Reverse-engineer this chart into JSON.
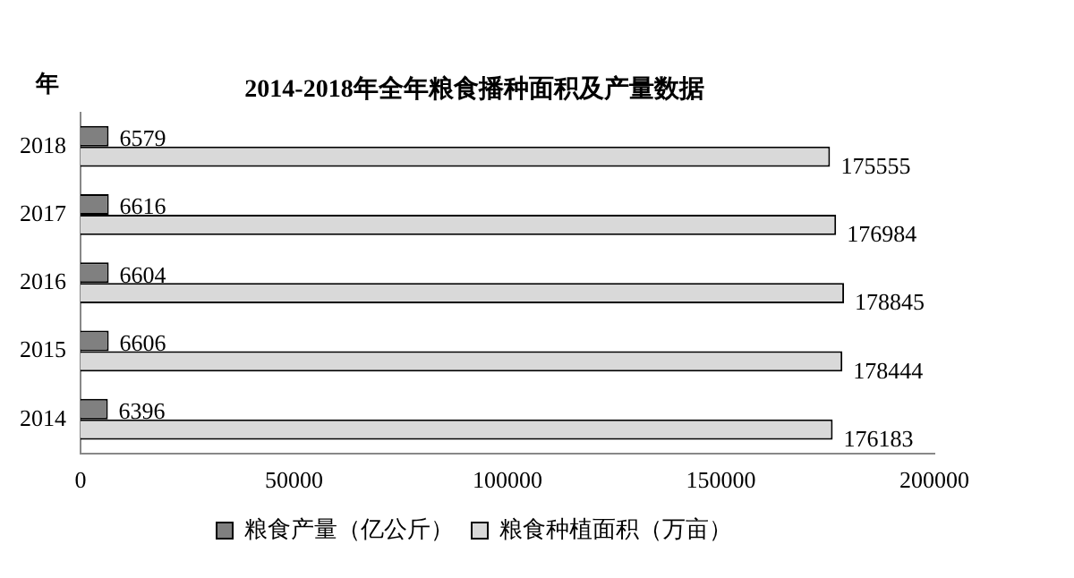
{
  "chart_data": {
    "type": "bar",
    "orientation": "horizontal",
    "title": "2014-2018年全年粮食播种面积及产量数据",
    "ylabel": "年",
    "categories": [
      "2018",
      "2017",
      "2016",
      "2015",
      "2014"
    ],
    "series": [
      {
        "name": "粮食产量（亿公斤）",
        "color": "#808080",
        "values": [
          6579,
          6616,
          6604,
          6606,
          6396
        ]
      },
      {
        "name": "粮食种植面积（万亩）",
        "color": "#d9d9d9",
        "values": [
          175555,
          176984,
          178845,
          178444,
          176183
        ]
      }
    ],
    "xlim": [
      0,
      200000
    ],
    "xticks": [
      0,
      50000,
      100000,
      150000,
      200000
    ],
    "grid": false,
    "legend": "bottom",
    "data_labels": true
  }
}
